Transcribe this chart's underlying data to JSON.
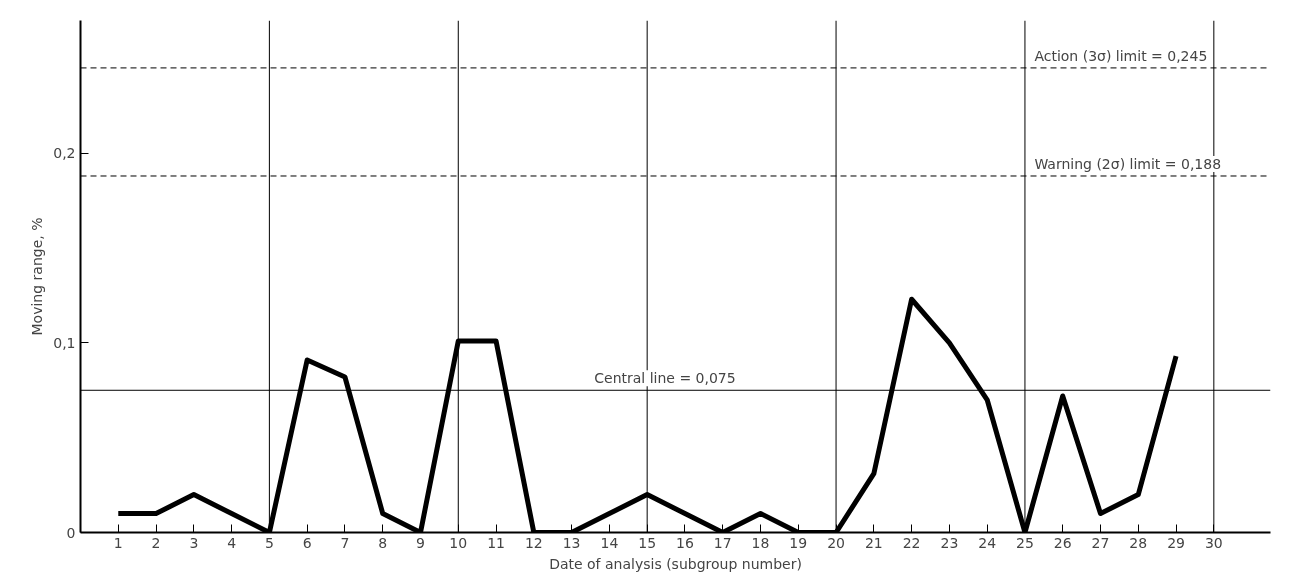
{
  "chart_data": {
    "type": "line",
    "xlabel": "Date of analysis (subgroup number)",
    "ylabel": "Moving range, %",
    "x": [
      1,
      2,
      3,
      4,
      5,
      6,
      7,
      8,
      9,
      10,
      11,
      12,
      13,
      14,
      15,
      16,
      17,
      18,
      19,
      20,
      21,
      22,
      23,
      24,
      25,
      26,
      27,
      28,
      29
    ],
    "series": [
      {
        "color": "#000000",
        "values": [
          0.01,
          0.01,
          0.02,
          0.01,
          0,
          0.091,
          0.082,
          0.01,
          0,
          0.101,
          0.101,
          0,
          0,
          0.01,
          0.02,
          0.01,
          0,
          0.01,
          0,
          0,
          0.031,
          0.123,
          0.1,
          0.07,
          0,
          0.072,
          0.01,
          0.02,
          0.093
        ]
      }
    ],
    "xlim": [
      0,
      31.5
    ],
    "ylim": [
      0,
      0.27
    ],
    "xticks": [
      1,
      2,
      3,
      4,
      5,
      6,
      7,
      8,
      9,
      10,
      11,
      12,
      13,
      14,
      15,
      16,
      17,
      18,
      19,
      20,
      21,
      22,
      23,
      24,
      25,
      26,
      27,
      28,
      29,
      30
    ],
    "yticks": [
      0,
      {
        "value": 0.1,
        "label": "0,1"
      },
      {
        "value": 0.2,
        "label": "0,2"
      }
    ],
    "ref_lines": [
      {
        "axis": "y",
        "value": 0.245,
        "label": "Action (3σ) limit = 0,245",
        "line_style": "dashed",
        "color": "#000000"
      },
      {
        "axis": "y",
        "value": 0.188,
        "label": "Warning (2σ) limit = 0,188",
        "line_style": "dashed",
        "color": "#000000"
      },
      {
        "axis": "y",
        "value": 0.075,
        "label": "Central line = 0,075",
        "line_style": "solid",
        "color": "#000000"
      },
      {
        "axis": "x",
        "value": 5,
        "color": "#000000"
      },
      {
        "axis": "x",
        "value": 10,
        "color": "#000000"
      },
      {
        "axis": "x",
        "value": 15,
        "color": "#000000"
      },
      {
        "axis": "x",
        "value": 20,
        "color": "#000000"
      },
      {
        "axis": "x",
        "value": 25,
        "color": "#000000"
      },
      {
        "axis": "x",
        "value": 30,
        "color": "#000000"
      }
    ],
    "grid": false,
    "line_style": "solid"
  }
}
